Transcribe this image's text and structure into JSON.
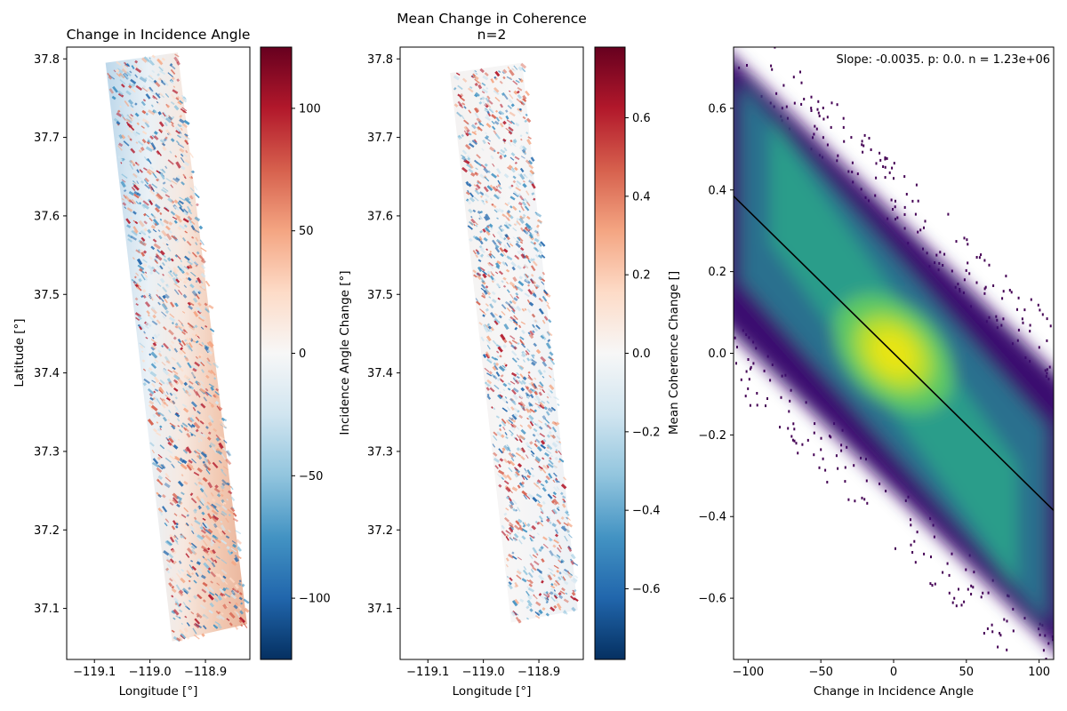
{
  "chart_data": [
    {
      "type": "heatmap",
      "title": "Change in Incidence Angle",
      "xlabel": "Longitude [°]",
      "ylabel": "Latitude [°]",
      "xticks": [
        -119.1,
        -119.0,
        -118.9
      ],
      "xtick_labels": [
        "−119.1",
        "−119.0",
        "−118.9"
      ],
      "yticks": [
        37.1,
        37.2,
        37.3,
        37.4,
        37.5,
        37.6,
        37.7,
        37.8
      ],
      "ytick_labels": [
        "37.1",
        "37.2",
        "37.3",
        "37.4",
        "37.5",
        "37.6",
        "37.7",
        "37.8"
      ],
      "xlim": [
        -119.15,
        -118.82
      ],
      "ylim": [
        37.035,
        37.815
      ],
      "footprint": [
        [
          -119.08,
          37.795
        ],
        [
          -118.95,
          37.808
        ],
        [
          -118.825,
          37.08
        ],
        [
          -118.96,
          37.058
        ]
      ],
      "colormap": "RdBu_r",
      "colorbar": {
        "label": "Incidence Angle Change [°]",
        "range": [
          -125,
          125
        ],
        "ticks": [
          -100,
          -50,
          0,
          50,
          100
        ],
        "tick_labels": [
          "−100",
          "−50",
          "0",
          "50",
          "100"
        ]
      }
    },
    {
      "type": "heatmap",
      "title": "Mean Change in Coherence\nn=2",
      "title_lines": [
        "Mean Change in Coherence",
        "n=2"
      ],
      "xlabel": "Longitude [°]",
      "ylabel": "",
      "xticks": [
        -119.1,
        -119.0,
        -118.9
      ],
      "xtick_labels": [
        "−119.1",
        "−119.0",
        "−118.9"
      ],
      "yticks": [
        37.1,
        37.2,
        37.3,
        37.4,
        37.5,
        37.6,
        37.7,
        37.8
      ],
      "ytick_labels": [
        "37.1",
        "37.2",
        "37.3",
        "37.4",
        "37.5",
        "37.6",
        "37.7",
        "37.8"
      ],
      "xlim": [
        -119.15,
        -118.82
      ],
      "ylim": [
        37.035,
        37.815
      ],
      "footprint": [
        [
          -119.06,
          37.782
        ],
        [
          -118.93,
          37.795
        ],
        [
          -118.83,
          37.098
        ],
        [
          -118.95,
          37.082
        ]
      ],
      "colormap": "RdBu_r",
      "colorbar": {
        "label": "Mean Coherence Change []",
        "range": [
          -0.78,
          0.78
        ],
        "ticks": [
          -0.6,
          -0.4,
          -0.2,
          0.0,
          0.2,
          0.4,
          0.6
        ],
        "tick_labels": [
          "−0.6",
          "−0.4",
          "−0.2",
          "0.0",
          "0.2",
          "0.4",
          "0.6"
        ]
      }
    },
    {
      "type": "heatmap",
      "subtype": "2d-histogram",
      "title": "",
      "xlabel": "Change in Incidence Angle",
      "ylabel": "",
      "xlim": [
        -110,
        110
      ],
      "ylim": [
        -0.75,
        0.75
      ],
      "xticks": [
        -100,
        -50,
        0,
        50,
        100
      ],
      "xtick_labels": [
        "−100",
        "−50",
        "0",
        "50",
        "100"
      ],
      "yticks": [
        -0.6,
        -0.4,
        -0.2,
        0.0,
        0.2,
        0.4,
        0.6
      ],
      "ytick_labels": [
        "−0.6",
        "−0.4",
        "−0.2",
        "0.0",
        "0.2",
        "0.4",
        "0.6"
      ],
      "colormap": "viridis",
      "annotation": "Slope: -0.0035. p: 0.0. n = 1.23e+06",
      "regression": {
        "slope": -0.0035,
        "intercept": 0.0,
        "x_range": [
          -110,
          110
        ]
      }
    }
  ]
}
